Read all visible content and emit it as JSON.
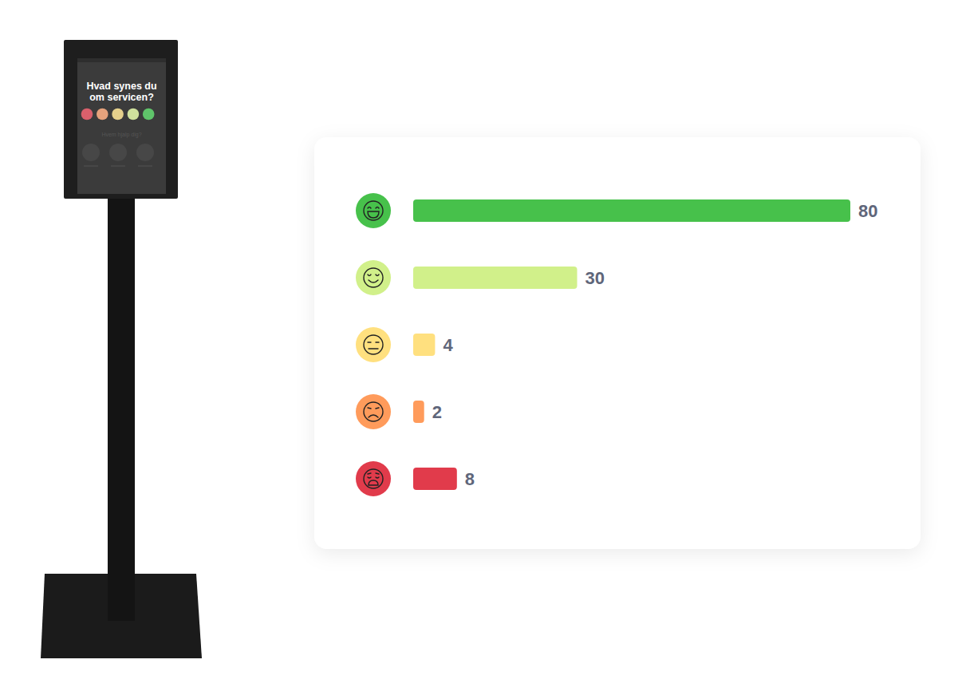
{
  "kiosk": {
    "question": "Hvad synes du om servicen?",
    "subquestion": "Hvem hjalp dig?"
  },
  "chart_data": {
    "type": "bar",
    "orientation": "horizontal",
    "categories": [
      null,
      null,
      null,
      null,
      null
    ],
    "values": [
      80,
      30,
      4,
      2,
      8
    ],
    "colors": [
      "#47c14b",
      "#d1f08a",
      "#ffe07f",
      "#ff9b5b",
      "#e13b4b"
    ],
    "xlim": [
      0,
      80
    ],
    "data_labels": true,
    "tick_labels": false,
    "grid": false
  }
}
